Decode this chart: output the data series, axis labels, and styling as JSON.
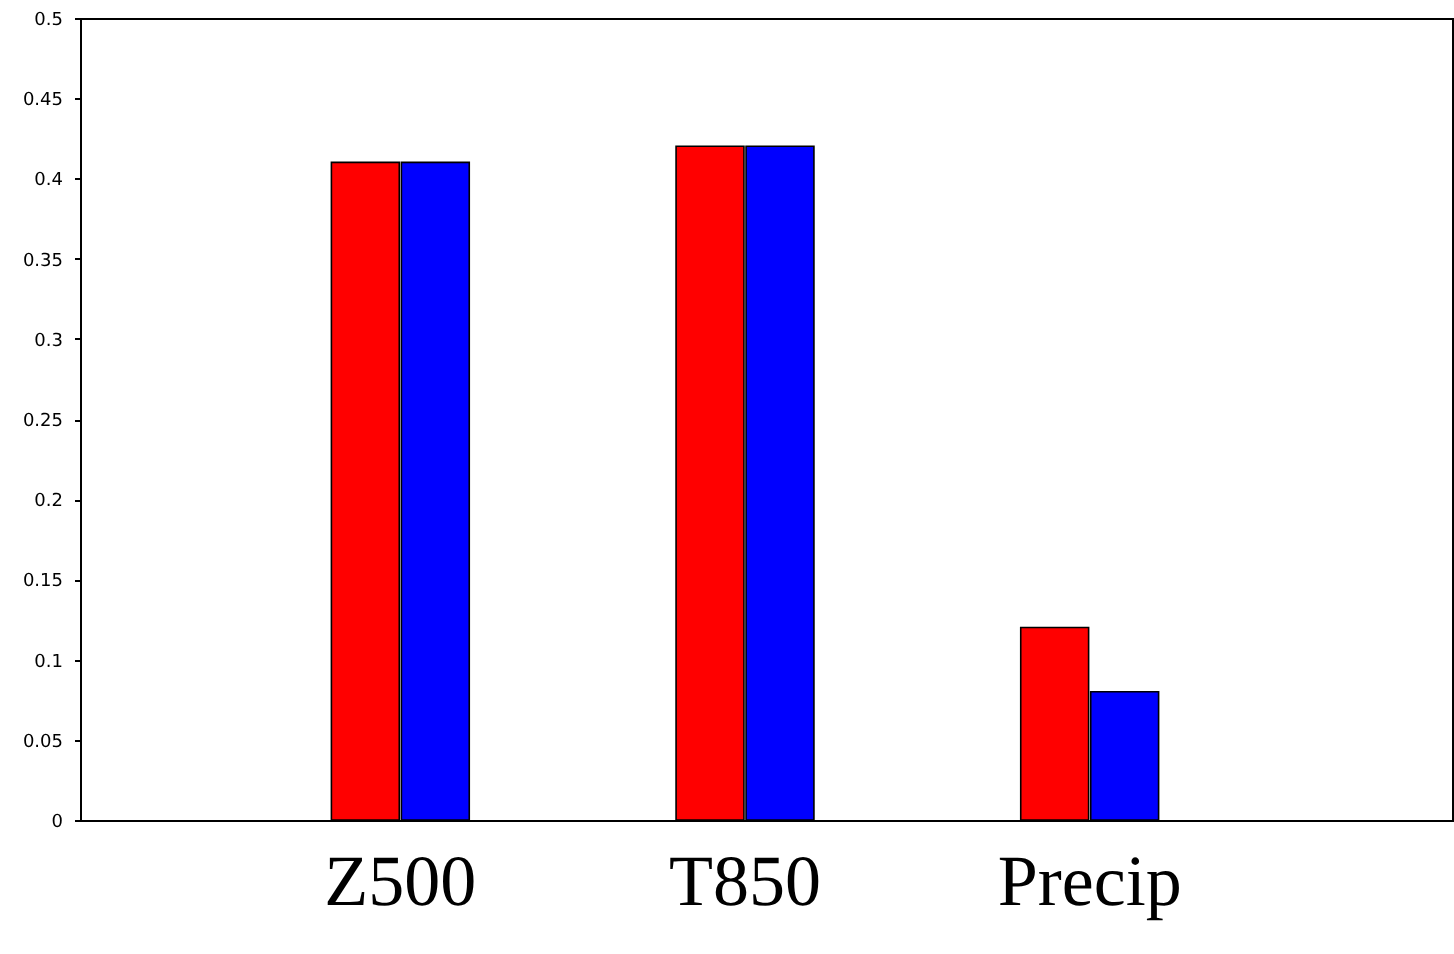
{
  "chart_data": {
    "type": "bar",
    "categories": [
      "Z500",
      "T850",
      "Precip"
    ],
    "series": [
      {
        "color": "#ff0000",
        "values": [
          0.41,
          0.42,
          0.12
        ]
      },
      {
        "color": "#0000ff",
        "values": [
          0.41,
          0.42,
          0.08
        ]
      }
    ],
    "ylim": [
      0,
      0.5
    ],
    "yticks": [
      0,
      0.05,
      0.1,
      0.15,
      0.2,
      0.25,
      0.3,
      0.35,
      0.4,
      0.45,
      0.5
    ],
    "grid": false,
    "legend": false
  }
}
